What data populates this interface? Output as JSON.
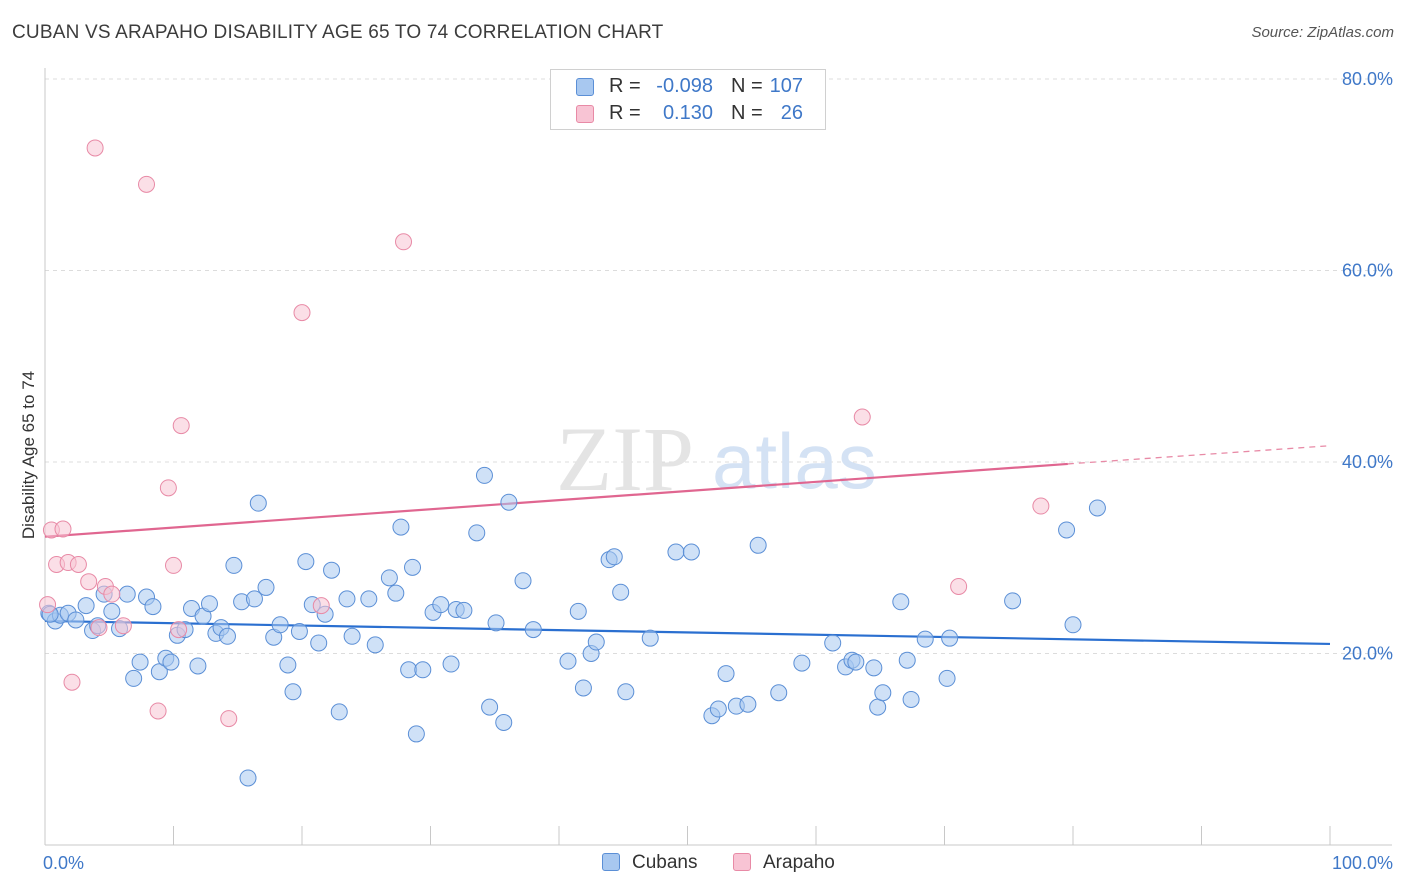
{
  "title": "CUBAN VS ARAPAHO DISABILITY AGE 65 TO 74 CORRELATION CHART",
  "source": "Source: ZipAtlas.com",
  "watermark": {
    "zip": "ZIP",
    "atlas": "atlas"
  },
  "legend": {
    "cubans": {
      "r_label": "R =",
      "r_value": "-0.098",
      "n_label": "N =",
      "n_value": "107"
    },
    "arapaho": {
      "r_label": "R =",
      "r_value": "0.130",
      "n_label": "N =",
      "n_value": "26"
    }
  },
  "bottom_legend": {
    "cubans": "Cubans",
    "arapaho": "Arapaho"
  },
  "colors": {
    "cubans_fill": "#a8c8f0",
    "cubans_stroke": "#5b8fd6",
    "cubans_line": "#2a6fd0",
    "arapaho_fill": "#f8c4d4",
    "arapaho_stroke": "#e88aa6",
    "arapaho_line": "#e06690",
    "tick_label": "#3f78c8"
  },
  "chart_data": {
    "type": "scatter",
    "title": "CUBAN VS ARAPAHO DISABILITY AGE 65 TO 74 CORRELATION CHART",
    "xlabel": "",
    "ylabel": "Disability Age 65 to 74",
    "xlim": [
      0,
      100
    ],
    "ylim": [
      0,
      80
    ],
    "x_tick_labels": [
      "0.0%",
      "100.0%"
    ],
    "y_ticks": [
      20,
      40,
      60,
      80
    ],
    "y_tick_labels": [
      "20.0%",
      "40.0%",
      "60.0%",
      "80.0%"
    ],
    "grid": true,
    "series": [
      {
        "name": "Cubans",
        "trend": {
          "x": [
            0,
            100
          ],
          "y": [
            23.4,
            21.0
          ]
        },
        "points": [
          [
            0.3,
            24.2
          ],
          [
            0.8,
            23.4
          ],
          [
            1.2,
            24.0
          ],
          [
            1.8,
            24.2
          ],
          [
            2.4,
            23.5
          ],
          [
            3.2,
            25.0
          ],
          [
            3.7,
            22.4
          ],
          [
            4.1,
            22.9
          ],
          [
            4.6,
            26.2
          ],
          [
            5.2,
            24.4
          ],
          [
            5.8,
            22.6
          ],
          [
            6.4,
            26.2
          ],
          [
            6.9,
            17.4
          ],
          [
            7.4,
            19.1
          ],
          [
            7.9,
            25.9
          ],
          [
            8.4,
            24.9
          ],
          [
            8.9,
            18.1
          ],
          [
            9.4,
            19.5
          ],
          [
            9.8,
            19.1
          ],
          [
            10.3,
            21.9
          ],
          [
            10.9,
            22.5
          ],
          [
            11.4,
            24.7
          ],
          [
            11.9,
            18.7
          ],
          [
            12.3,
            23.9
          ],
          [
            12.8,
            25.2
          ],
          [
            13.3,
            22.1
          ],
          [
            13.7,
            22.7
          ],
          [
            14.2,
            21.8
          ],
          [
            14.7,
            29.2
          ],
          [
            15.3,
            25.4
          ],
          [
            15.8,
            7.0
          ],
          [
            16.3,
            25.7
          ],
          [
            16.6,
            35.7
          ],
          [
            17.2,
            26.9
          ],
          [
            17.8,
            21.7
          ],
          [
            18.3,
            23.0
          ],
          [
            18.9,
            18.8
          ],
          [
            19.3,
            16.0
          ],
          [
            19.8,
            22.3
          ],
          [
            20.3,
            29.6
          ],
          [
            20.8,
            25.1
          ],
          [
            21.3,
            21.1
          ],
          [
            21.8,
            24.1
          ],
          [
            22.3,
            28.7
          ],
          [
            22.9,
            13.9
          ],
          [
            23.5,
            25.7
          ],
          [
            23.9,
            21.8
          ],
          [
            25.2,
            25.7
          ],
          [
            25.7,
            20.9
          ],
          [
            26.8,
            27.9
          ],
          [
            27.3,
            26.3
          ],
          [
            27.7,
            33.2
          ],
          [
            28.3,
            18.3
          ],
          [
            28.6,
            29.0
          ],
          [
            28.9,
            11.6
          ],
          [
            29.4,
            18.3
          ],
          [
            30.2,
            24.3
          ],
          [
            30.8,
            25.1
          ],
          [
            31.6,
            18.9
          ],
          [
            32.0,
            24.6
          ],
          [
            32.6,
            24.5
          ],
          [
            33.6,
            32.6
          ],
          [
            34.2,
            38.6
          ],
          [
            34.6,
            14.4
          ],
          [
            35.1,
            23.2
          ],
          [
            35.7,
            12.8
          ],
          [
            36.1,
            35.8
          ],
          [
            37.2,
            27.6
          ],
          [
            38.0,
            22.5
          ],
          [
            40.7,
            19.2
          ],
          [
            41.5,
            24.4
          ],
          [
            41.9,
            16.4
          ],
          [
            42.5,
            20.0
          ],
          [
            42.9,
            21.2
          ],
          [
            43.9,
            29.8
          ],
          [
            44.3,
            30.1
          ],
          [
            44.8,
            26.4
          ],
          [
            45.2,
            16.0
          ],
          [
            47.1,
            21.6
          ],
          [
            49.1,
            30.6
          ],
          [
            50.3,
            30.6
          ],
          [
            51.9,
            13.5
          ],
          [
            52.4,
            14.2
          ],
          [
            53.0,
            17.9
          ],
          [
            53.8,
            14.5
          ],
          [
            54.7,
            14.7
          ],
          [
            55.5,
            31.3
          ],
          [
            57.1,
            15.9
          ],
          [
            58.9,
            19.0
          ],
          [
            61.3,
            21.1
          ],
          [
            62.3,
            18.6
          ],
          [
            62.8,
            19.3
          ],
          [
            63.1,
            19.1
          ],
          [
            64.5,
            18.5
          ],
          [
            64.8,
            14.4
          ],
          [
            65.2,
            15.9
          ],
          [
            66.6,
            25.4
          ],
          [
            67.1,
            19.3
          ],
          [
            67.4,
            15.2
          ],
          [
            68.5,
            21.5
          ],
          [
            70.2,
            17.4
          ],
          [
            70.4,
            21.6
          ],
          [
            75.3,
            25.5
          ],
          [
            79.5,
            32.9
          ],
          [
            80.0,
            23.0
          ],
          [
            81.9,
            35.2
          ],
          [
            0.4,
            24.1
          ]
        ]
      },
      {
        "name": "Arapaho",
        "trend": {
          "x": [
            0,
            79.6
          ],
          "y": [
            32.2,
            39.8
          ]
        },
        "trend_extension": {
          "x": [
            79.6,
            100
          ],
          "y": [
            39.8,
            41.7
          ]
        },
        "points": [
          [
            0.5,
            32.9
          ],
          [
            0.9,
            29.3
          ],
          [
            1.4,
            33.0
          ],
          [
            1.8,
            29.5
          ],
          [
            2.1,
            17.0
          ],
          [
            2.6,
            29.3
          ],
          [
            3.4,
            27.5
          ],
          [
            3.9,
            72.8
          ],
          [
            4.2,
            22.7
          ],
          [
            4.7,
            27.0
          ],
          [
            5.2,
            26.2
          ],
          [
            6.1,
            22.9
          ],
          [
            7.9,
            69.0
          ],
          [
            8.8,
            14.0
          ],
          [
            9.6,
            37.3
          ],
          [
            10.0,
            29.2
          ],
          [
            10.4,
            22.5
          ],
          [
            10.6,
            43.8
          ],
          [
            14.3,
            13.2
          ],
          [
            20.0,
            55.6
          ],
          [
            21.5,
            25.0
          ],
          [
            27.9,
            63.0
          ],
          [
            63.6,
            44.7
          ],
          [
            71.1,
            27.0
          ],
          [
            77.5,
            35.4
          ],
          [
            0.2,
            25.1
          ]
        ]
      }
    ]
  }
}
